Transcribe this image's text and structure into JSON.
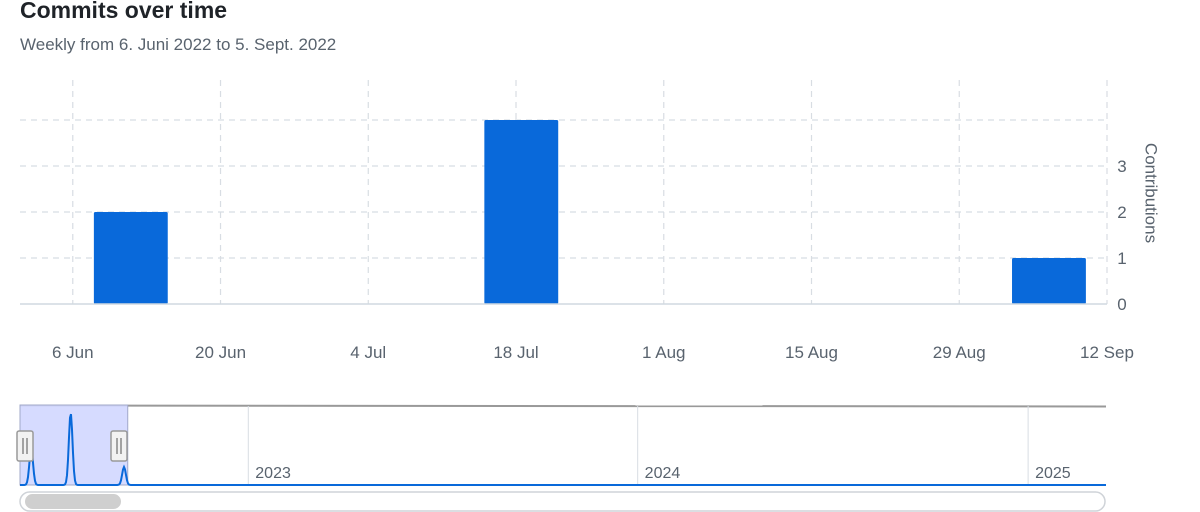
{
  "chart_data": {
    "type": "bar",
    "title": "Commits over time",
    "subtitle": "Weekly from 6. Juni 2022 to 5. Sept. 2022",
    "ylabel": "Contributions",
    "y_ticks": [
      "0",
      "1",
      "2",
      "3"
    ],
    "ylim": [
      0,
      4
    ],
    "x_axis": "dates",
    "x_range": [
      "2022-06-01",
      "2022-09-12"
    ],
    "x_tick_labels": [
      {
        "label": "6 Jun",
        "date": "2022-06-06"
      },
      {
        "label": "20 Jun",
        "date": "2022-06-20"
      },
      {
        "label": "4 Jul",
        "date": "2022-07-04"
      },
      {
        "label": "18 Jul",
        "date": "2022-07-18"
      },
      {
        "label": "1 Aug",
        "date": "2022-08-01"
      },
      {
        "label": "15 Aug",
        "date": "2022-08-15"
      },
      {
        "label": "29 Aug",
        "date": "2022-08-29"
      },
      {
        "label": "12 Sep",
        "date": "2022-09-12"
      }
    ],
    "bars": [
      {
        "week_start": "2022-06-08",
        "week_end": "2022-06-15",
        "value": 2
      },
      {
        "week_start": "2022-07-15",
        "week_end": "2022-07-22",
        "value": 4
      },
      {
        "week_start": "2022-09-03",
        "week_end": "2022-09-10",
        "value": 1
      }
    ],
    "grid": true,
    "bar_color": "#0969da",
    "grid_color": "#d8dde3",
    "axis_color": "#d1d9e0"
  },
  "navigator": {
    "year_labels": [
      {
        "label": "2023",
        "date": "2023-01-01"
      },
      {
        "label": "2024",
        "date": "2024-01-01"
      },
      {
        "label": "2025",
        "date": "2025-01-01"
      }
    ],
    "x_range": [
      "2022-06-01",
      "2025-03-15"
    ],
    "selected_range": [
      "2022-06-01",
      "2022-09-10"
    ],
    "selection_color": "#d2d7ff",
    "line_color": "#0969da"
  }
}
